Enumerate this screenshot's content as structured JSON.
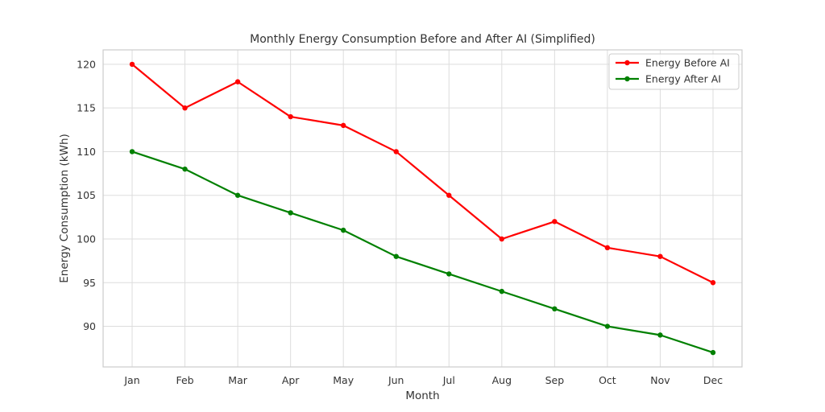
{
  "chart_data": {
    "type": "line",
    "title": "Monthly Energy Consumption Before and After AI (Simplified)",
    "xlabel": "Month",
    "ylabel": "Energy Consumption (kWh)",
    "categories": [
      "Jan",
      "Feb",
      "Mar",
      "Apr",
      "May",
      "Jun",
      "Jul",
      "Aug",
      "Sep",
      "Oct",
      "Nov",
      "Dec"
    ],
    "series": [
      {
        "name": "Energy Before AI",
        "color": "#ff0000",
        "values": [
          120,
          115,
          118,
          114,
          113,
          110,
          105,
          100,
          102,
          99,
          98,
          95
        ]
      },
      {
        "name": "Energy After AI",
        "color": "#008000",
        "values": [
          110,
          108,
          105,
          103,
          101,
          98,
          96,
          94,
          92,
          90,
          89,
          87
        ]
      }
    ],
    "yticks": [
      90,
      95,
      100,
      105,
      110,
      115,
      120
    ],
    "ylim": [
      85.35,
      121.65
    ],
    "grid": true,
    "legend_position": "top-right",
    "marker": "circle"
  }
}
